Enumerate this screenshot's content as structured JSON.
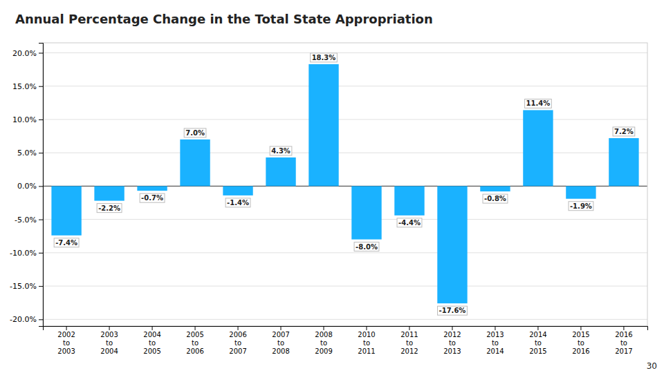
{
  "chart_data": {
    "type": "bar",
    "title": "Annual Percentage Change in the Total State Appropriation",
    "categories": [
      "2002\nto\n2003",
      "2003\nto\n2004",
      "2004\nto\n2005",
      "2005\nto\n2006",
      "2006\nto\n2007",
      "2007\nto\n2008",
      "2008\nto\n2009",
      "2010\nto\n2011",
      "2011\nto\n2012",
      "2012\nto\n2013",
      "2013\nto\n2014",
      "2014\nto\n2015",
      "2015\nto\n2016",
      "2016\nto\n2017"
    ],
    "values": [
      -7.4,
      -2.2,
      -0.7,
      7.0,
      -1.4,
      4.3,
      18.3,
      -8.0,
      -4.4,
      -17.6,
      -0.8,
      11.4,
      -1.9,
      7.2
    ],
    "value_labels": [
      "-7.4%",
      "-2.2%",
      "-0.7%",
      "7.0%",
      "-1.4%",
      "4.3%",
      "18.3%",
      "-8.0%",
      "-4.4%",
      "-17.6%",
      "-0.8%",
      "11.4%",
      "-1.9%",
      "7.2%"
    ],
    "data_labels": true,
    "color": "#1AB2FF",
    "ylim": [
      -21.0,
      21.5
    ],
    "yticks": [
      {
        "value": -20.0,
        "label": "-20.0%"
      },
      {
        "value": -15.0,
        "label": "-15.0%"
      },
      {
        "value": -10.0,
        "label": "-10.0%"
      },
      {
        "value": -5.0,
        "label": "-5.0%"
      },
      {
        "value": 0.0,
        "label": "0.0%"
      },
      {
        "value": 5.0,
        "label": "5.0%"
      },
      {
        "value": 10.0,
        "label": "10.0%"
      },
      {
        "value": 15.0,
        "label": "15.0%"
      },
      {
        "value": 20.0,
        "label": "20.0%"
      }
    ],
    "grid": true,
    "annotations": [
      "30"
    ]
  }
}
